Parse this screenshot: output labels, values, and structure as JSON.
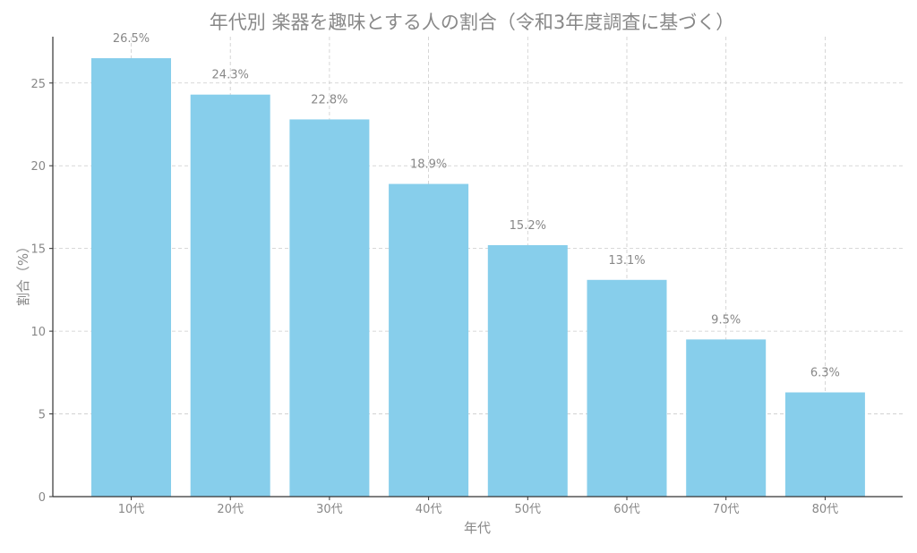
{
  "chart_data": {
    "type": "bar",
    "title": "年代別 楽器を趣味とする人の割合（令和3年度調査に基づく）",
    "xlabel": "年代",
    "ylabel": "割合（%）",
    "categories": [
      "10代",
      "20代",
      "30代",
      "40代",
      "50代",
      "60代",
      "70代",
      "80代"
    ],
    "values": [
      26.5,
      24.3,
      22.8,
      18.9,
      15.2,
      13.1,
      9.5,
      6.3
    ],
    "data_labels": [
      "26.5%",
      "24.3%",
      "22.8%",
      "18.9%",
      "15.2%",
      "13.1%",
      "9.5%",
      "6.3%"
    ],
    "y_ticks": [
      0,
      5,
      10,
      15,
      20,
      25
    ],
    "ylim": [
      0,
      27.8
    ],
    "grid": true,
    "colors": {
      "bar": "#87ceeb",
      "grid": "#cccccc",
      "text": "#888888",
      "axis": "#333333"
    }
  }
}
